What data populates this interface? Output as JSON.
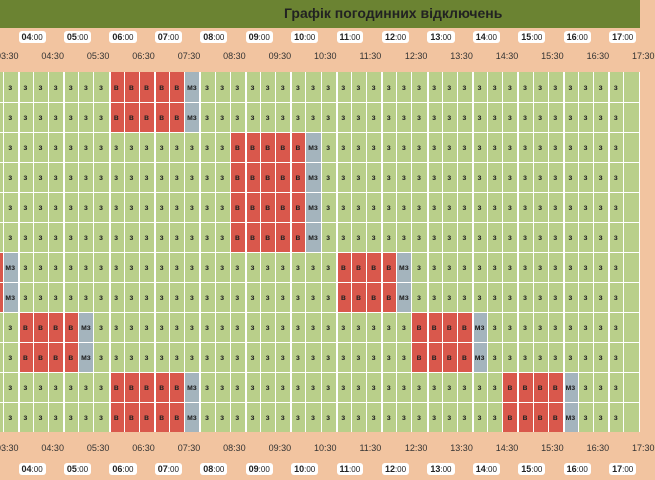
{
  "title": "Графік погодинних відключень",
  "hours": [
    "04:00",
    "05:00",
    "06:00",
    "07:00",
    "08:00",
    "09:00",
    "10:00",
    "11:00",
    "12:00",
    "13:00",
    "14:00",
    "15:00",
    "16:00",
    "17:00"
  ],
  "half_hours": [
    "03:30",
    "04:30",
    "05:30",
    "06:30",
    "07:30",
    "08:30",
    "09:30",
    "10:30",
    "11:30",
    "12:30",
    "13:30",
    "14:30",
    "15:30",
    "16:30",
    "17:30"
  ],
  "status_labels": {
    "on": "з",
    "off": "в",
    "maybe": "мз"
  },
  "colors": {
    "on": "#b9cf8a",
    "off": "#d9584c",
    "maybe": "#a4b4bd",
    "header": "#6b8332",
    "time_bar": "#f2c4a0"
  },
  "rows": [
    "ggggggggrrrrrbgggggggggggggggggggggggggggg",
    "ggggggggrrrrrbgggggggggggggggggggggggggggg",
    "ggggggggggggggggrrrrrbgggggggggggggggggggg",
    "ggggggggggggggggrrrrrbgggggggggggggggggggg",
    "ggggggggggggggggrrrrrbgggggggggggggggggggg",
    "ggggggggggggggggrrrrrbgggggggggggggggggggg",
    "rbgggggggggggggggggggggrrrrbgggggggggggggg",
    "rbgggggggggggggggggggggrrrrbgggggggggggggg",
    "ggrrrrbgggggggggggggggggggggrrrrbggggggggg",
    "ggrrrrbgggggggggggggggggggggrrrrbggggggggg",
    "ggggggggrrrrrbggggggggggggggggggggrrrrbggg",
    "ggggggggrrrrrbggggggggggggggggggggrrrrbggg"
  ]
}
